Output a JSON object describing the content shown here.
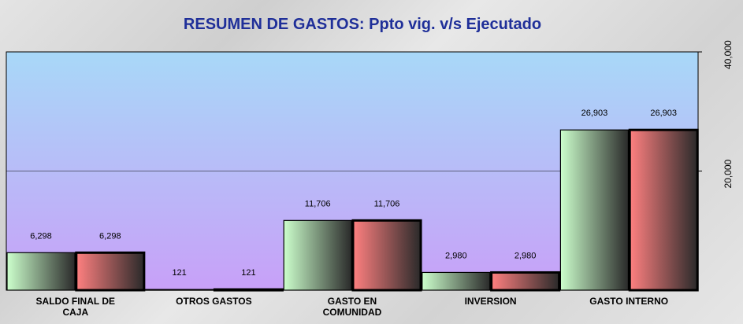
{
  "chart_data": {
    "type": "bar",
    "title": "RESUMEN DE GASTOS: Ppto vig. v/s Ejecutado",
    "categories": [
      "SALDO FINAL DE CAJA",
      "OTROS GASTOS",
      "GASTO EN COMUNIDAD",
      "INVERSION",
      "GASTO INTERNO"
    ],
    "series": [
      {
        "color": "#ccffcc",
        "values": [
          6298,
          121,
          11706,
          2980,
          26903
        ],
        "value_labels": [
          "6,298",
          "121",
          "11,706",
          "2,980",
          "26,903"
        ]
      },
      {
        "color": "#ff8080",
        "values": [
          6298,
          121,
          11706,
          2980,
          26903
        ],
        "value_labels": [
          "6,298",
          "121",
          "11,706",
          "2,980",
          "26,903"
        ]
      }
    ],
    "ylim": [
      0,
      40000
    ],
    "yticks": [
      {
        "value": 20000,
        "label": "20,000"
      },
      {
        "value": 40000,
        "label": "40,000"
      }
    ],
    "grid": true
  }
}
